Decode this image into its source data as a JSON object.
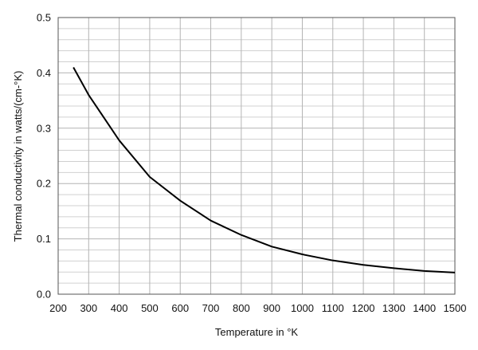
{
  "chart_data": {
    "type": "line",
    "x_label": "Temperature in °K",
    "y_label": "Thermal conductivity in watts/(cm-°K)",
    "x": [
      250,
      300,
      400,
      500,
      600,
      700,
      800,
      900,
      1000,
      1100,
      1200,
      1300,
      1400,
      1500
    ],
    "series": [
      {
        "name": "Thermal conductivity",
        "color": "#000000",
        "values": [
          0.41,
          0.36,
          0.278,
          0.212,
          0.169,
          0.133,
          0.107,
          0.086,
          0.072,
          0.061,
          0.053,
          0.047,
          0.042,
          0.039
        ]
      }
    ],
    "xlim": [
      200,
      1500
    ],
    "xticks": [
      200,
      300,
      400,
      500,
      600,
      700,
      800,
      900,
      1000,
      1100,
      1200,
      1300,
      1400,
      1500
    ],
    "ylim": [
      0,
      0.5
    ],
    "yticks": [
      {
        "value": 0,
        "label": "0.0"
      },
      0.1,
      0.2,
      0.3,
      0.4,
      0.5
    ],
    "yminor_ticks": [
      0.02,
      0.04,
      0.06,
      0.08,
      0.12,
      0.14,
      0.16,
      0.18,
      0.22,
      0.24,
      0.26,
      0.28,
      0.32,
      0.34,
      0.36,
      0.38,
      0.42,
      0.44,
      0.46,
      0.48
    ],
    "grid": true,
    "legend": false
  }
}
